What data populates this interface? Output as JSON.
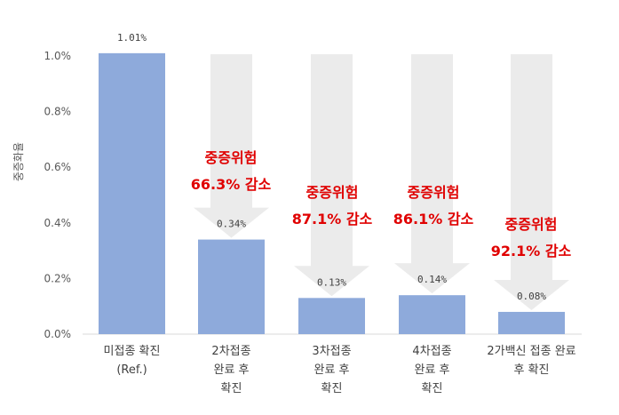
{
  "chart_data": {
    "type": "bar",
    "categories": [
      [
        "미접종 확진",
        "(Ref.)"
      ],
      [
        "2차접종",
        "완료 후",
        "확진"
      ],
      [
        "3차접종",
        "완료 후",
        "확진"
      ],
      [
        "4차접종",
        "완료 후",
        "확진"
      ],
      [
        "2가백신 접종 완료",
        "후 확진"
      ]
    ],
    "values": [
      1.01,
      0.34,
      0.13,
      0.14,
      0.08
    ],
    "data_labels": [
      "1.01%",
      "0.34%",
      "0.13%",
      "0.14%",
      "0.08%"
    ],
    "ylabel": "중증화율",
    "ylim": [
      0,
      1.0
    ],
    "yticks": [
      "0.0%",
      "0.2%",
      "0.4%",
      "0.6%",
      "0.8%",
      "1.0%"
    ],
    "grid": false,
    "bar_color": "#8eaadb",
    "arrow_color": "#ebebeb",
    "annotation_color": "#e00000",
    "annotations": [
      null,
      [
        "중증위험",
        "66.3% 감소"
      ],
      [
        "중증위험",
        "87.1% 감소"
      ],
      [
        "중증위험",
        "86.1% 감소"
      ],
      [
        "중증위험",
        "92.1% 감소"
      ]
    ]
  }
}
